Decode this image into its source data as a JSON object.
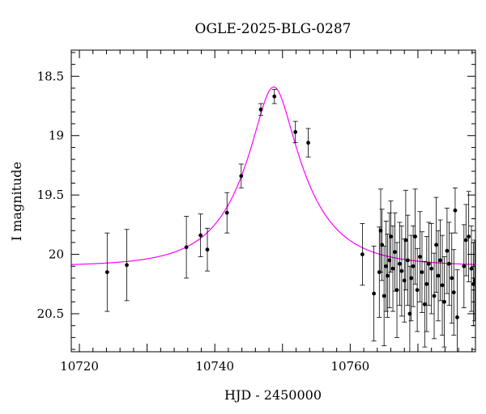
{
  "chart_data": {
    "type": "scatter",
    "title": "OGLE-2025-BLG-0287",
    "xlabel": "HJD - 2450000",
    "ylabel": "I magnitude",
    "xlim": [
      10718.8,
      10778.5
    ],
    "ylim": [
      20.82,
      18.28
    ],
    "y_inverted": true,
    "grid": false,
    "x_ticks": [
      10720,
      10740,
      10760
    ],
    "x_tick_labels": [
      "10720",
      "10740",
      "10760"
    ],
    "y_ticks": [
      18.5,
      19,
      19.5,
      20,
      20.5
    ],
    "y_tick_labels": [
      "18.5",
      "19",
      "19.5",
      "20",
      "20.5"
    ],
    "fit_color": "#ff00ff",
    "point_color": "#000000",
    "model": {
      "t0": 10748.7,
      "tE": 9.0,
      "u0": 0.3,
      "baseline": 20.1,
      "peak": 18.59
    },
    "series": [
      {
        "x": [
          10724.1,
          10727.0,
          10735.8,
          10737.9,
          10738.9,
          10741.8,
          10743.9,
          10746.8,
          10748.8,
          10751.9,
          10753.8,
          10761.8,
          10763.5,
          10764.3,
          10764.5,
          10764.7,
          10765.0,
          10765.3,
          10765.5,
          10765.8,
          10766.0,
          10766.3,
          10766.6,
          10766.9,
          10767.3,
          10767.6,
          10768.0,
          10768.2,
          10768.5,
          10768.8,
          10769.0,
          10769.3,
          10769.6,
          10769.9,
          10770.3,
          10770.6,
          10771.0,
          10771.3,
          10771.6,
          10772.0,
          10772.4,
          10772.7,
          10773.0,
          10773.3,
          10773.6,
          10773.9,
          10774.3,
          10774.6,
          10775.0,
          10775.3,
          10775.5,
          10775.8,
          10776.8,
          10777.1,
          10777.5,
          10777.9,
          10778.2,
          10778.4
        ],
        "y": [
          20.15,
          20.09,
          19.94,
          19.84,
          19.96,
          19.65,
          19.34,
          18.78,
          18.67,
          18.97,
          19.06,
          20.0,
          20.33,
          20.15,
          19.8,
          19.92,
          20.35,
          20.1,
          20.18,
          20.05,
          19.85,
          20.12,
          19.98,
          20.3,
          20.08,
          20.14,
          20.22,
          19.88,
          20.05,
          20.5,
          20.2,
          20.1,
          19.85,
          20.3,
          20.02,
          20.15,
          20.42,
          20.25,
          20.08,
          20.12,
          20.35,
          19.92,
          20.18,
          20.05,
          20.26,
          20.4,
          19.97,
          20.08,
          20.2,
          20.32,
          19.63,
          20.53,
          20.1,
          19.88,
          19.85,
          20.12,
          20.25,
          20.22
        ],
        "yerr": [
          0.33,
          0.3,
          0.26,
          0.18,
          0.18,
          0.17,
          0.1,
          0.05,
          0.06,
          0.09,
          0.12,
          0.26,
          0.4,
          0.38,
          0.35,
          0.3,
          0.42,
          0.38,
          0.35,
          0.4,
          0.3,
          0.36,
          0.33,
          0.4,
          0.35,
          0.38,
          0.35,
          0.42,
          0.38,
          0.4,
          0.36,
          0.34,
          0.4,
          0.35,
          0.38,
          0.34,
          0.36,
          0.4,
          0.35,
          0.38,
          0.36,
          0.4,
          0.38,
          0.34,
          0.42,
          0.38,
          0.36,
          0.35,
          0.38,
          0.36,
          0.19,
          0.4,
          0.35,
          0.3,
          0.38,
          0.36,
          0.35,
          0.34
        ]
      }
    ]
  }
}
